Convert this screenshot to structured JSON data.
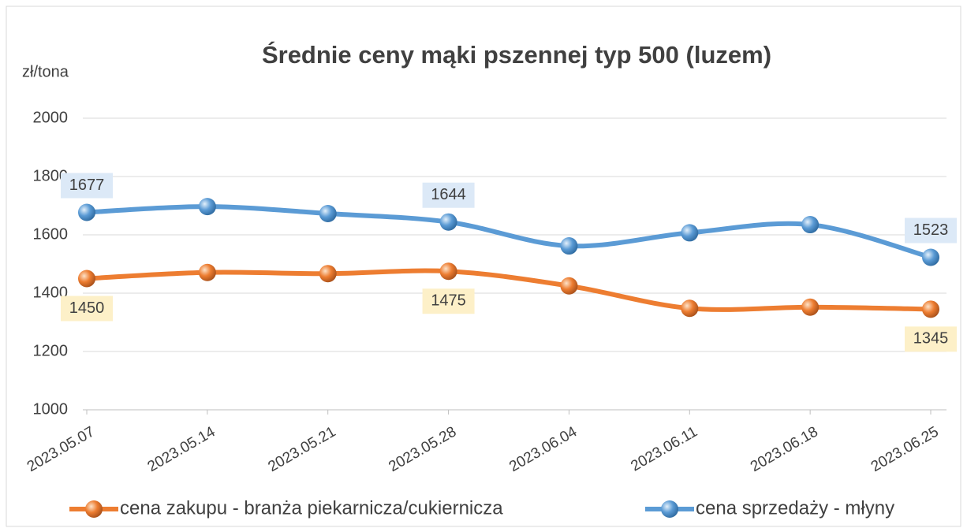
{
  "chart_data": {
    "type": "line",
    "title": "Średnie ceny mąki pszennej typ 500 (luzem)",
    "y_label": "zł/tona",
    "categories": [
      "2023.05.07",
      "2023.05.14",
      "2023.05.21",
      "2023.05.28",
      "2023.06.04",
      "2023.06.11",
      "2023.06.18",
      "2023.06.25"
    ],
    "series": [
      {
        "name": "cena zakupu - branża piekarnicza/cukiernicza",
        "color": "#ed7d31",
        "label_bg": "#fdf0c8",
        "label_side": "below",
        "values": [
          1450,
          1471,
          1467,
          1475,
          1425,
          1348,
          1352,
          1345
        ]
      },
      {
        "name": "cena sprzedaży - młyny",
        "color": "#5b9bd5",
        "label_bg": "#dce9f7",
        "label_side": "above",
        "values": [
          1677,
          1697,
          1673,
          1644,
          1562,
          1607,
          1635,
          1523
        ]
      }
    ],
    "labeled_indices": [
      0,
      3,
      7
    ],
    "ylim": [
      1000,
      2000
    ],
    "yticks": [
      1000,
      1200,
      1400,
      1600,
      1800,
      2000
    ],
    "grid": true,
    "smooth": true,
    "legend": "bottom"
  }
}
